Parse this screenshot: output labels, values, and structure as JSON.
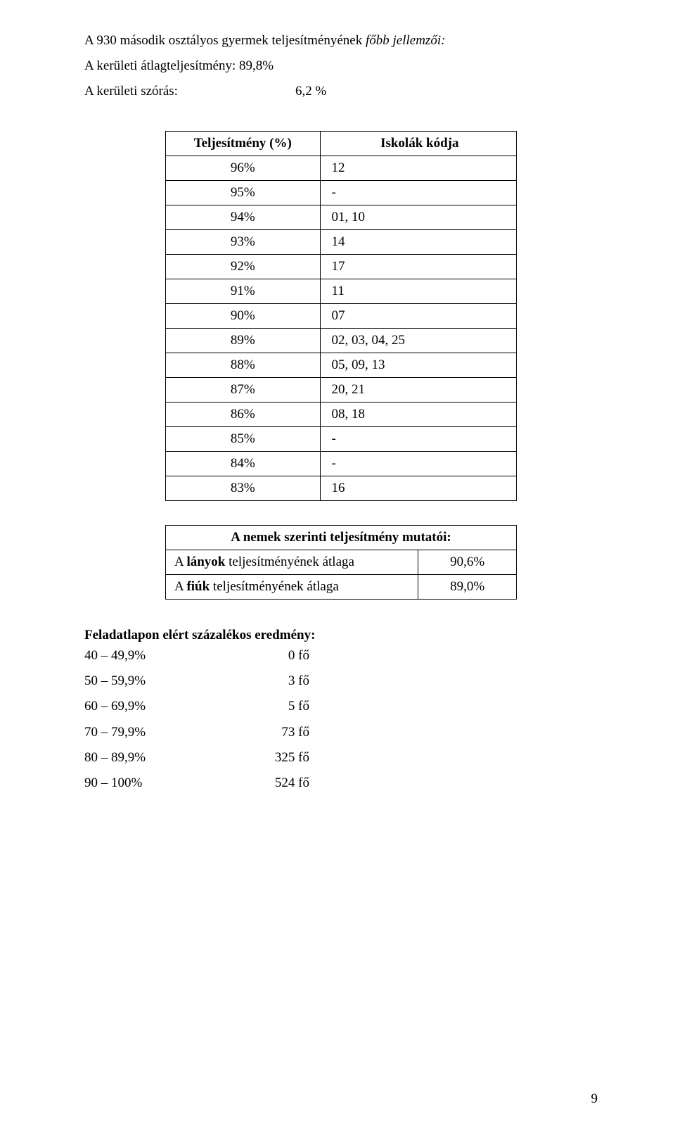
{
  "intro": {
    "line1_prefix": "A 930 második osztályos gyermek teljesítményének ",
    "line1_italic": "főbb jellemzői:",
    "line2": "A kerületi átlagteljesítmény: 89,8%",
    "line3_label": "A kerületi szórás:",
    "line3_value": "6,2 %"
  },
  "perf_table": {
    "header_left": "Teljesítmény (%)",
    "header_right": "Iskolák kódja",
    "rows": [
      {
        "pct": "96%",
        "codes": "12"
      },
      {
        "pct": "95%",
        "codes": "-"
      },
      {
        "pct": "94%",
        "codes": "01, 10"
      },
      {
        "pct": "93%",
        "codes": "14"
      },
      {
        "pct": "92%",
        "codes": "17"
      },
      {
        "pct": "91%",
        "codes": "11"
      },
      {
        "pct": "90%",
        "codes": "07"
      },
      {
        "pct": "89%",
        "codes": "02, 03, 04, 25"
      },
      {
        "pct": "88%",
        "codes": "05, 09, 13"
      },
      {
        "pct": "87%",
        "codes": "20, 21"
      },
      {
        "pct": "86%",
        "codes": "08, 18"
      },
      {
        "pct": "85%",
        "codes": "-"
      },
      {
        "pct": "84%",
        "codes": "-"
      },
      {
        "pct": "83%",
        "codes": "16"
      }
    ]
  },
  "gender_table": {
    "header": "A nemek szerinti teljesítmény mutatói:",
    "rows": [
      {
        "label_prefix": "A ",
        "label_bold": "lányok",
        "label_suffix": " teljesítményének átlaga",
        "value": "90,6%"
      },
      {
        "label_prefix": "A ",
        "label_bold": "fiúk",
        "label_suffix": " teljesítményének átlaga",
        "value": "89,0%"
      }
    ]
  },
  "dist": {
    "heading": "Feladatlapon elért százalékos eredmény:",
    "rows": [
      {
        "range": "40 – 49,9%",
        "count": "0 fő"
      },
      {
        "range": "50 – 59,9%",
        "count": "3 fő"
      },
      {
        "range": "60 – 69,9%",
        "count": "5 fő"
      },
      {
        "range": "70 – 79,9%",
        "count": "73 fő"
      },
      {
        "range": "80 – 89,9%",
        "count": "325 fő"
      },
      {
        "range": "90 – 100%",
        "count": "524 fő"
      }
    ]
  },
  "page_number": "9"
}
